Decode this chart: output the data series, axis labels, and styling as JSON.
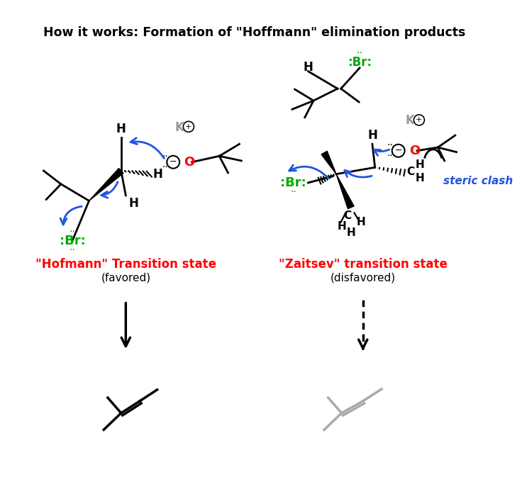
{
  "title": "How it works: Formation of \"Hoffmann\" elimination products",
  "title_fontsize": 12.5,
  "title_fontweight": "bold",
  "bg_color": "#ffffff",
  "hoffmann_label": "\"Hofmann\" Transition state",
  "hoffmann_sublabel": "(favored)",
  "zaitsev_label": "\"Zaitsev\" transition state",
  "zaitsev_sublabel": "(disfavored)",
  "steric_clash_label": "steric clash",
  "label_color_red": "#ff0000",
  "label_color_blue": "#2255dd",
  "label_color_green": "#00aa00",
  "label_color_gray": "#999999",
  "label_color_black": "#000000",
  "label_color_lgray": "#aaaaaa"
}
